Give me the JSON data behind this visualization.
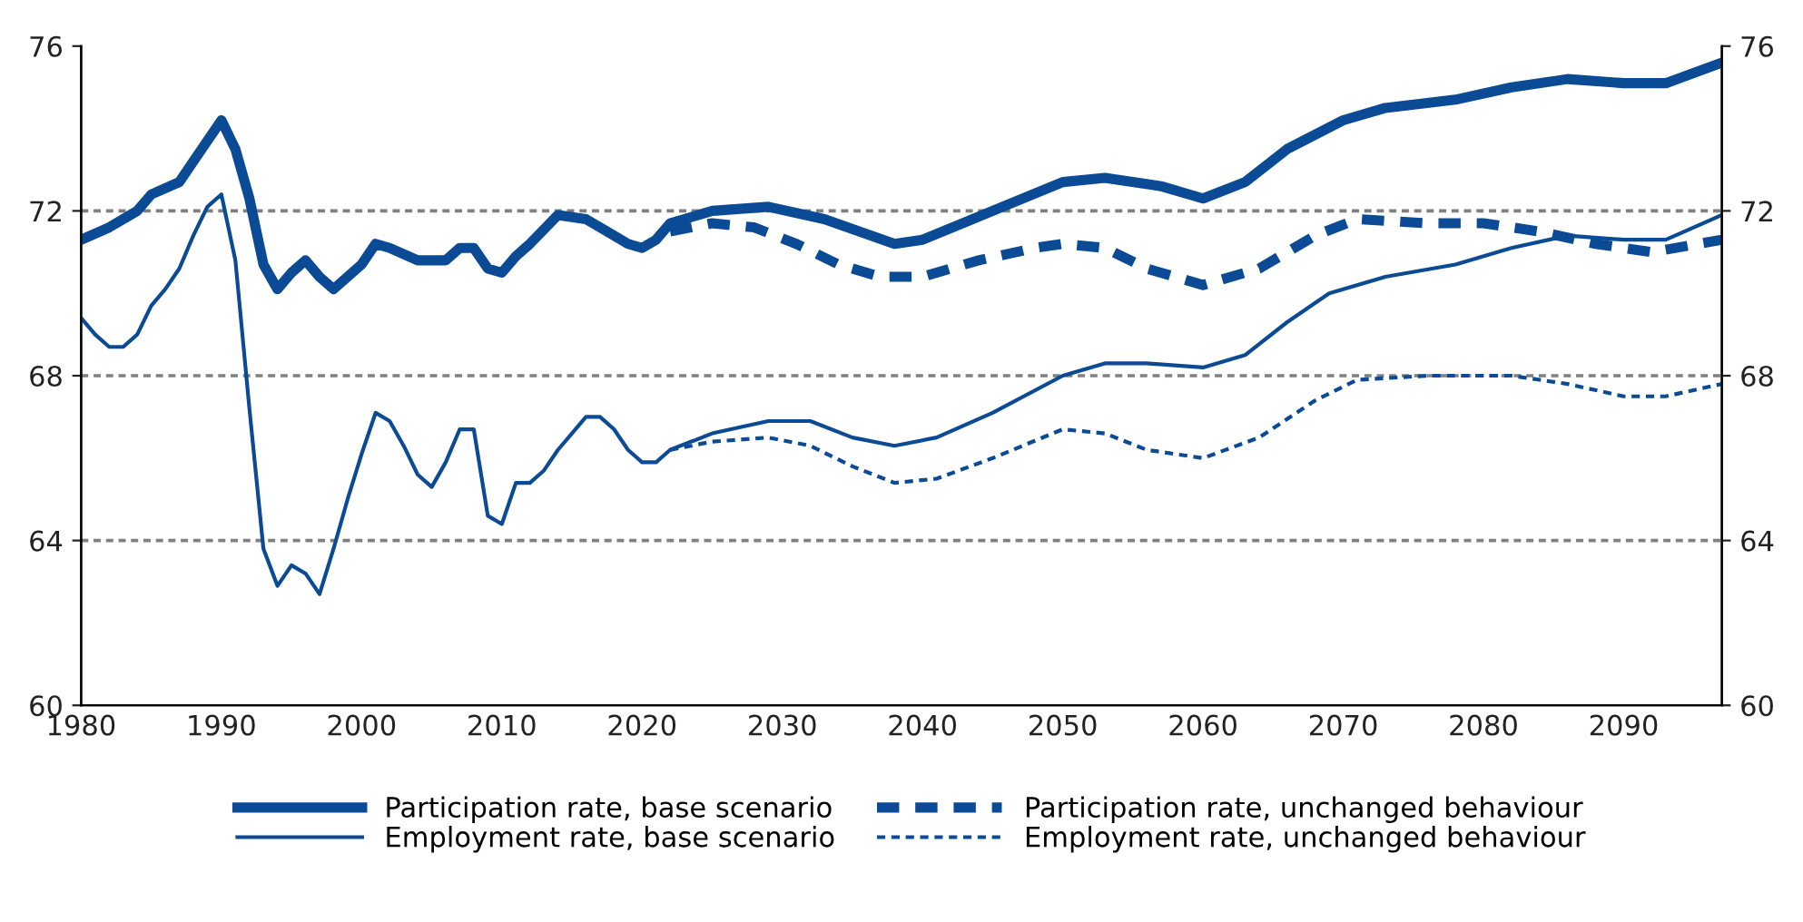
{
  "chart_data": {
    "type": "line",
    "series": [
      {
        "name": "Participation rate, base scenario",
        "color": "#0b4a94",
        "line_style": "solid",
        "x": [
          1980,
          1982,
          1984,
          1985,
          1987,
          1988,
          1990,
          1991,
          1992,
          1993,
          1994,
          1995,
          1996,
          1997,
          1998,
          2000,
          2001,
          2002,
          2004,
          2006,
          2007,
          2008,
          2009,
          2010,
          2011,
          2012,
          2014,
          2016,
          2017,
          2019,
          2020,
          2021,
          2022,
          2025,
          2029,
          2033,
          2038,
          2040,
          2045,
          2050,
          2053,
          2057,
          2060,
          2063,
          2066,
          2070,
          2073,
          2078,
          2082,
          2086,
          2090,
          2093,
          2097
        ],
        "values": [
          71.3,
          71.6,
          72.0,
          72.4,
          72.7,
          73.2,
          74.2,
          73.5,
          72.3,
          70.7,
          70.1,
          70.5,
          70.8,
          70.4,
          70.1,
          70.7,
          71.2,
          71.1,
          70.8,
          70.8,
          71.1,
          71.1,
          70.6,
          70.5,
          70.9,
          71.2,
          71.9,
          71.8,
          71.6,
          71.2,
          71.1,
          71.3,
          71.7,
          72.0,
          72.1,
          71.8,
          71.2,
          71.3,
          72.0,
          72.7,
          72.8,
          72.6,
          72.3,
          72.7,
          73.5,
          74.2,
          74.5,
          74.7,
          75.0,
          75.2,
          75.1,
          75.1,
          75.6
        ]
      },
      {
        "name": "Participation rate, unchanged behaviour",
        "color": "#0b4a94",
        "line_style": "dashed",
        "x": [
          2022,
          2025,
          2028,
          2031,
          2034,
          2037,
          2040,
          2044,
          2048,
          2050,
          2053,
          2056,
          2060,
          2064,
          2068,
          2071,
          2076,
          2080,
          2084,
          2088,
          2092,
          2097
        ],
        "values": [
          71.5,
          71.7,
          71.6,
          71.2,
          70.7,
          70.4,
          70.4,
          70.8,
          71.1,
          71.2,
          71.1,
          70.6,
          70.2,
          70.6,
          71.4,
          71.8,
          71.7,
          71.7,
          71.5,
          71.2,
          71.0,
          71.3
        ]
      },
      {
        "name": "Employment rate, base scenario",
        "color": "#0b4a94",
        "line_style": "solid",
        "x": [
          1980,
          1981,
          1982,
          1983,
          1984,
          1985,
          1986,
          1987,
          1988,
          1989,
          1990,
          1991,
          1992,
          1993,
          1994,
          1995,
          1996,
          1997,
          1998,
          1999,
          2000,
          2001,
          2002,
          2003,
          2004,
          2005,
          2006,
          2007,
          2008,
          2009,
          2010,
          2011,
          2012,
          2013,
          2014,
          2015,
          2016,
          2017,
          2018,
          2019,
          2020,
          2021,
          2022,
          2025,
          2029,
          2032,
          2035,
          2038,
          2041,
          2045,
          2050,
          2053,
          2056,
          2060,
          2063,
          2066,
          2069,
          2073,
          2078,
          2082,
          2086,
          2090,
          2093,
          2097
        ],
        "values": [
          69.4,
          69.0,
          68.7,
          68.7,
          69.0,
          69.7,
          70.1,
          70.6,
          71.4,
          72.1,
          72.4,
          70.8,
          67.2,
          63.8,
          62.9,
          63.4,
          63.2,
          62.7,
          63.8,
          65.0,
          66.1,
          67.1,
          66.9,
          66.3,
          65.6,
          65.3,
          65.9,
          66.7,
          66.7,
          64.6,
          64.4,
          65.4,
          65.4,
          65.7,
          66.2,
          66.6,
          67.0,
          67.0,
          66.7,
          66.2,
          65.9,
          65.9,
          66.2,
          66.6,
          66.9,
          66.9,
          66.5,
          66.3,
          66.5,
          67.1,
          68.0,
          68.3,
          68.3,
          68.2,
          68.5,
          69.3,
          70.0,
          70.4,
          70.7,
          71.1,
          71.4,
          71.3,
          71.3,
          71.9
        ]
      },
      {
        "name": "Employment rate, unchanged behaviour",
        "color": "#0b4a94",
        "line_style": "dashed",
        "x": [
          2022,
          2025,
          2029,
          2032,
          2035,
          2038,
          2041,
          2045,
          2050,
          2053,
          2056,
          2060,
          2064,
          2068,
          2071,
          2076,
          2082,
          2086,
          2090,
          2093,
          2097
        ],
        "values": [
          66.2,
          66.4,
          66.5,
          66.3,
          65.8,
          65.4,
          65.5,
          66.0,
          66.7,
          66.6,
          66.2,
          66.0,
          66.5,
          67.4,
          67.9,
          68.0,
          68.0,
          67.8,
          67.5,
          67.5,
          67.8
        ]
      }
    ],
    "xlim": [
      1980,
      2097
    ],
    "xticks": [
      1980,
      1990,
      2000,
      2010,
      2020,
      2030,
      2040,
      2050,
      2060,
      2070,
      2080,
      2090
    ],
    "ylim": [
      60,
      76
    ],
    "yticks": [
      60,
      64,
      68,
      72,
      76
    ],
    "y2lim": [
      60,
      76
    ],
    "y2ticks": [
      60,
      64,
      68,
      72,
      76
    ],
    "ref_lines": [
      {
        "axis": "y",
        "value": 64,
        "color": "#808080",
        "line_style": "dashed"
      },
      {
        "axis": "y",
        "value": 68,
        "color": "#808080",
        "line_style": "dashed"
      },
      {
        "axis": "y",
        "value": 72,
        "color": "#808080",
        "line_style": "dashed"
      }
    ],
    "grid": false,
    "legend": "bottom"
  }
}
